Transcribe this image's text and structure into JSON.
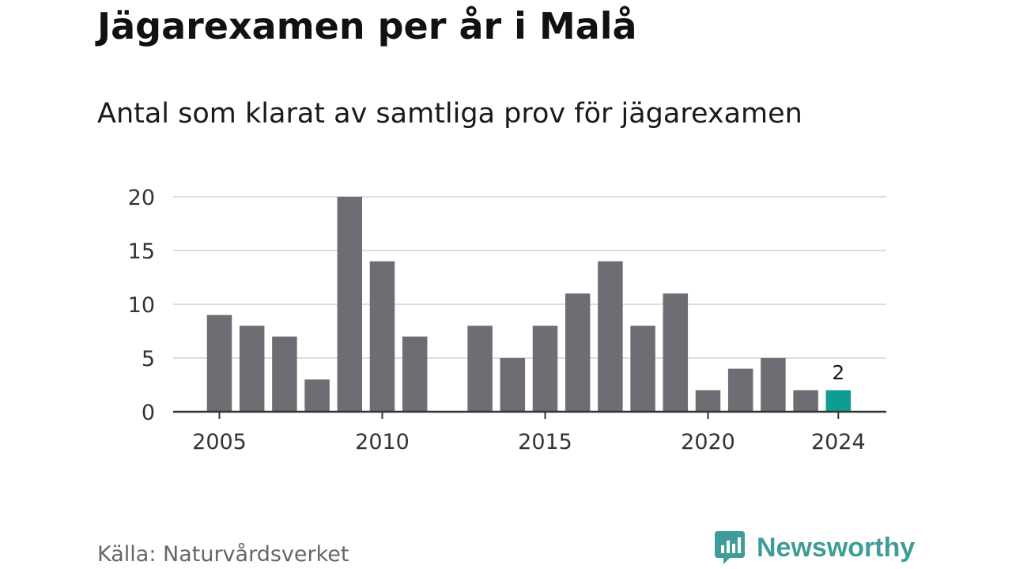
{
  "header": {
    "title": "Jägarexamen per år i Malå",
    "subtitle": "Antal som klarat av samtliga prov för jägarexamen"
  },
  "footer": {
    "source": "Källa: Naturvårdsverket",
    "brand": "Newsworthy",
    "brand_color": "#3f9c98"
  },
  "colors": {
    "bar": "#6e6d74",
    "highlight": "#0e9e91",
    "grid": "#dddddd",
    "axis": "#333333"
  },
  "chart_data": {
    "type": "bar",
    "title": "Jägarexamen per år i Malå",
    "subtitle": "Antal som klarat av samtliga prov för jägarexamen",
    "x": [
      2005,
      2006,
      2007,
      2008,
      2009,
      2010,
      2011,
      2012,
      2013,
      2014,
      2015,
      2016,
      2017,
      2018,
      2019,
      2020,
      2021,
      2022,
      2023,
      2024
    ],
    "values": [
      9,
      8,
      7,
      3,
      20,
      14,
      7,
      null,
      8,
      5,
      8,
      11,
      14,
      8,
      11,
      2,
      4,
      5,
      2,
      2
    ],
    "xticks": [
      "2005",
      "2010",
      "2015",
      "2020",
      "2024"
    ],
    "yticks": [
      "0",
      "5",
      "10",
      "15",
      "20"
    ],
    "ylim": [
      0,
      20
    ],
    "grid": true,
    "highlight": {
      "x": 2024,
      "label": "2"
    }
  }
}
